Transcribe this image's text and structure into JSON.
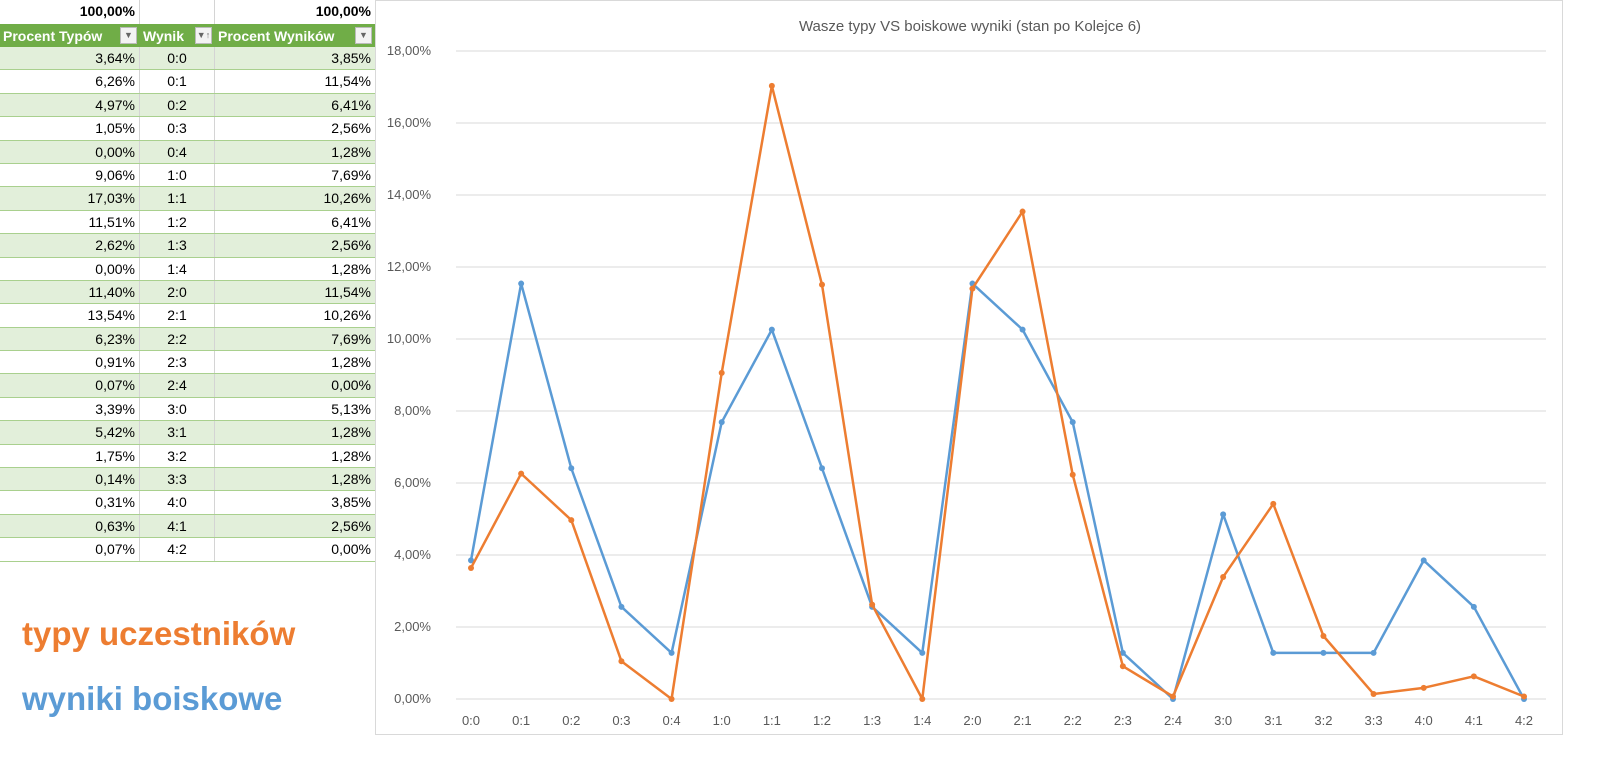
{
  "table": {
    "totals": [
      "100,00%",
      "",
      "100,00%"
    ],
    "headers": [
      "Procent Typów",
      "Wynik",
      "Procent Wyników"
    ],
    "rows": [
      [
        "3,64%",
        "0:0",
        "3,85%"
      ],
      [
        "6,26%",
        "0:1",
        "11,54%"
      ],
      [
        "4,97%",
        "0:2",
        "6,41%"
      ],
      [
        "1,05%",
        "0:3",
        "2,56%"
      ],
      [
        "0,00%",
        "0:4",
        "1,28%"
      ],
      [
        "9,06%",
        "1:0",
        "7,69%"
      ],
      [
        "17,03%",
        "1:1",
        "10,26%"
      ],
      [
        "11,51%",
        "1:2",
        "6,41%"
      ],
      [
        "2,62%",
        "1:3",
        "2,56%"
      ],
      [
        "0,00%",
        "1:4",
        "1,28%"
      ],
      [
        "11,40%",
        "2:0",
        "11,54%"
      ],
      [
        "13,54%",
        "2:1",
        "10,26%"
      ],
      [
        "6,23%",
        "2:2",
        "7,69%"
      ],
      [
        "0,91%",
        "2:3",
        "1,28%"
      ],
      [
        "0,07%",
        "2:4",
        "0,00%"
      ],
      [
        "3,39%",
        "3:0",
        "5,13%"
      ],
      [
        "5,42%",
        "3:1",
        "1,28%"
      ],
      [
        "1,75%",
        "3:2",
        "1,28%"
      ],
      [
        "0,14%",
        "3:3",
        "1,28%"
      ],
      [
        "0,31%",
        "4:0",
        "3,85%"
      ],
      [
        "0,63%",
        "4:1",
        "2,56%"
      ],
      [
        "0,07%",
        "4:2",
        "0,00%"
      ]
    ]
  },
  "legend_labels": {
    "typy": "typy uczestników",
    "wyniki": "wyniki boiskowe"
  },
  "chart_data": {
    "type": "line",
    "title": "Wasze typy VS boiskowe wyniki (stan po Kolejce 6)",
    "categories": [
      "0:0",
      "0:1",
      "0:2",
      "0:3",
      "0:4",
      "1:0",
      "1:1",
      "1:2",
      "1:3",
      "1:4",
      "2:0",
      "2:1",
      "2:2",
      "2:3",
      "2:4",
      "3:0",
      "3:1",
      "3:2",
      "3:3",
      "4:0",
      "4:1",
      "4:2"
    ],
    "ylim": [
      0,
      18
    ],
    "yticks": [
      "0,00%",
      "2,00%",
      "4,00%",
      "6,00%",
      "8,00%",
      "10,00%",
      "12,00%",
      "14,00%",
      "16,00%",
      "18,00%"
    ],
    "grid": true,
    "series": [
      {
        "name": "typy uczestników",
        "color": "#ed7d31",
        "values": [
          3.64,
          6.26,
          4.97,
          1.05,
          0,
          9.06,
          17.03,
          11.51,
          2.62,
          0,
          11.4,
          13.54,
          6.23,
          0.91,
          0.07,
          3.39,
          5.42,
          1.75,
          0.14,
          0.31,
          0.63,
          0.07
        ]
      },
      {
        "name": "wyniki boiskowe",
        "color": "#5b9bd5",
        "values": [
          3.85,
          11.54,
          6.41,
          2.56,
          1.28,
          7.69,
          10.26,
          6.41,
          2.56,
          1.28,
          11.54,
          10.26,
          7.69,
          1.28,
          0,
          5.13,
          1.28,
          1.28,
          1.28,
          3.85,
          2.56,
          0
        ]
      }
    ]
  }
}
